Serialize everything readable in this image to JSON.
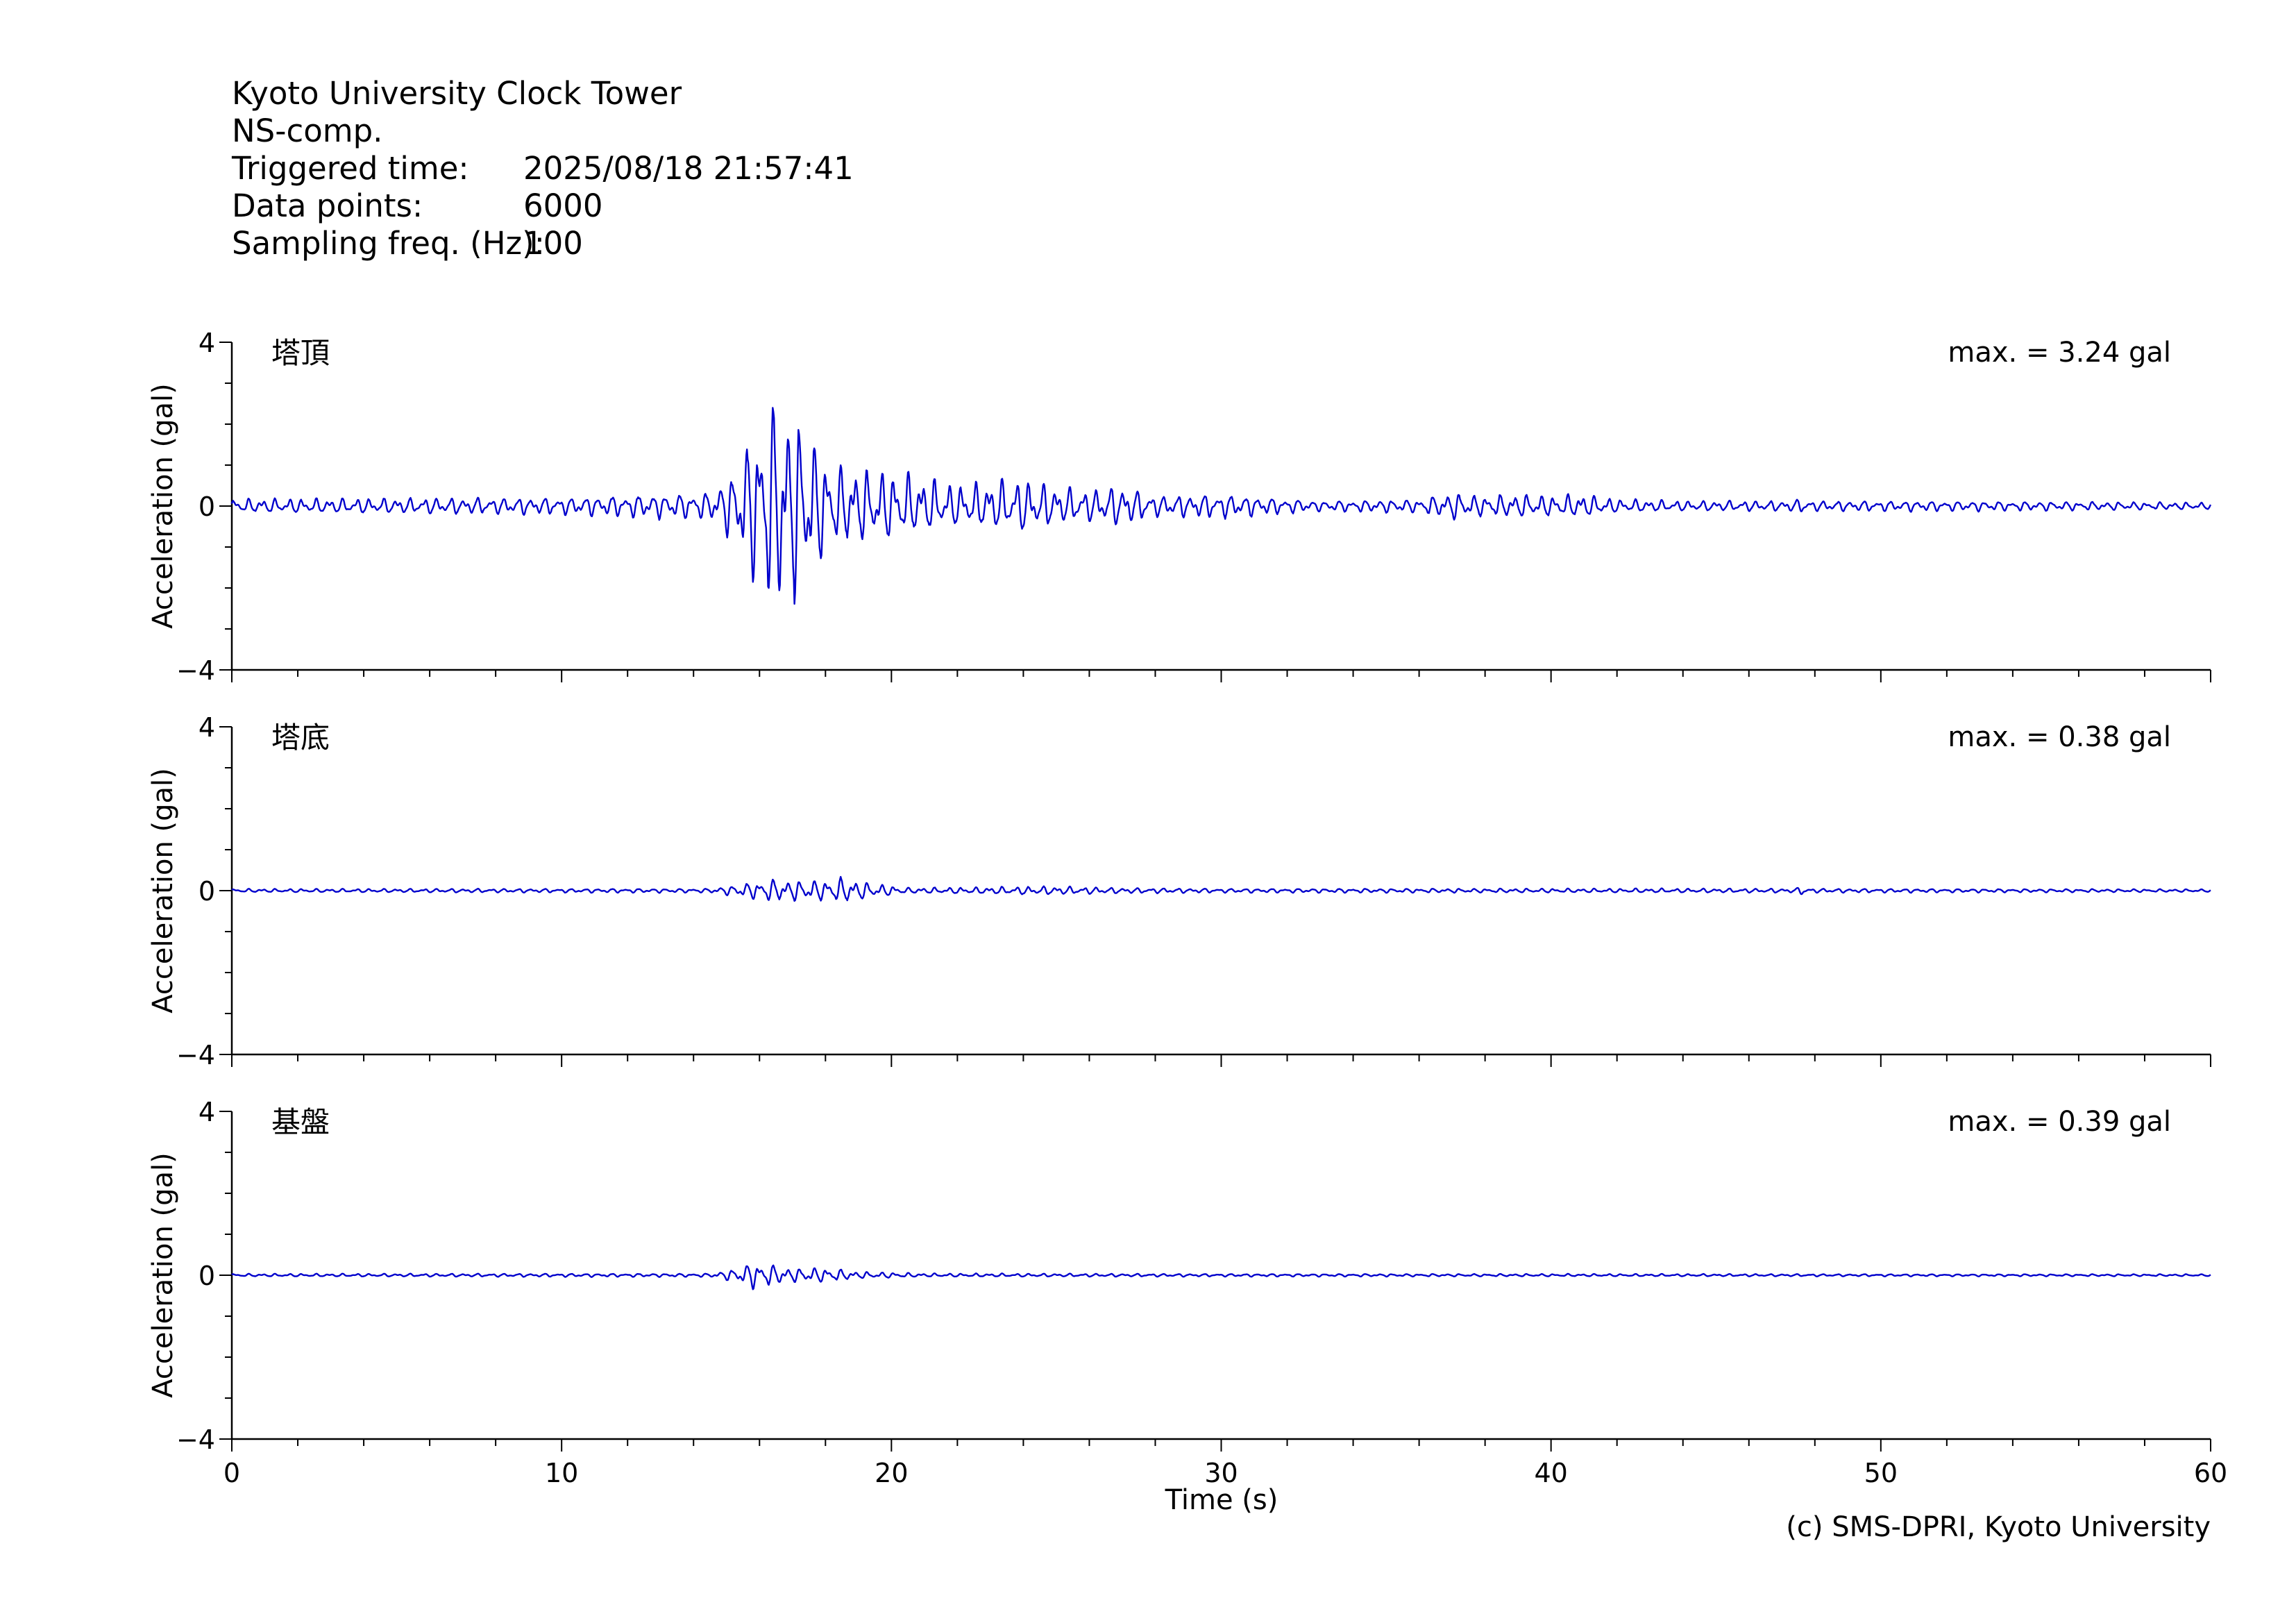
{
  "header": {
    "station": "Kyoto University Clock Tower",
    "component": "NS-comp.",
    "triggered_label": "Triggered time:",
    "triggered_value": "2025/08/18 21:57:41",
    "points_label": "Data points:",
    "points_value": "6000",
    "freq_label": "Sampling freq. (Hz):",
    "freq_value": "100"
  },
  "copyright": "(c) SMS-DPRI, Kyoto University",
  "colors": {
    "trace": "#0000cc",
    "axis": "#000000"
  },
  "chart_data": {
    "type": "line",
    "xlabel": "Time (s)",
    "ylabel": "Acceleration (gal)",
    "xlim": [
      0,
      60
    ],
    "ylim": [
      -4,
      4
    ],
    "xticks": [
      0,
      10,
      20,
      30,
      40,
      50,
      60
    ],
    "yticks": [
      -4,
      0,
      4
    ],
    "panels": [
      {
        "name": "塔頂",
        "max_label": "max. = 3.24 gal",
        "envelope": {
          "t": [
            0,
            10,
            14.5,
            15.2,
            15.8,
            16.3,
            16.6,
            17.0,
            17.6,
            18.2,
            19.0,
            20.0,
            21.0,
            22.0,
            23.0,
            24.0,
            25.0,
            26.0,
            27.0,
            28.0,
            30.0,
            33.0,
            36.0,
            37.0,
            38.0,
            39.0,
            40.0,
            41.0,
            42.0,
            44.0,
            47.0,
            47.6,
            48.0,
            52.0,
            60.0
          ],
          "a": [
            0.2,
            0.25,
            0.4,
            1.0,
            2.2,
            3.0,
            3.24,
            2.9,
            2.0,
            1.2,
            1.1,
            1.0,
            0.8,
            0.6,
            0.7,
            0.8,
            0.55,
            0.45,
            0.6,
            0.3,
            0.35,
            0.15,
            0.2,
            0.4,
            0.3,
            0.35,
            0.3,
            0.35,
            0.2,
            0.15,
            0.15,
            0.2,
            0.15,
            0.15,
            0.1
          ]
        }
      },
      {
        "name": "塔底",
        "max_label": "max. = 0.38 gal",
        "envelope": {
          "t": [
            0,
            14.5,
            15.5,
            16.3,
            17.0,
            18.0,
            18.5,
            19.5,
            20.5,
            23.0,
            24.0,
            25.0,
            27.0,
            30.0,
            40.0,
            47.4,
            47.6,
            47.9,
            60.0
          ],
          "a": [
            0.05,
            0.06,
            0.2,
            0.33,
            0.3,
            0.3,
            0.38,
            0.2,
            0.08,
            0.1,
            0.12,
            0.12,
            0.08,
            0.06,
            0.06,
            0.06,
            0.14,
            0.06,
            0.04
          ]
        }
      },
      {
        "name": "基盤",
        "max_label": "max. = 0.39 gal",
        "envelope": {
          "t": [
            0,
            14.5,
            15.3,
            15.8,
            16.4,
            17.0,
            18.0,
            19.0,
            20.0,
            21.0,
            30.0,
            60.0
          ],
          "a": [
            0.04,
            0.05,
            0.2,
            0.39,
            0.3,
            0.2,
            0.22,
            0.1,
            0.08,
            0.05,
            0.04,
            0.03
          ]
        }
      }
    ]
  }
}
